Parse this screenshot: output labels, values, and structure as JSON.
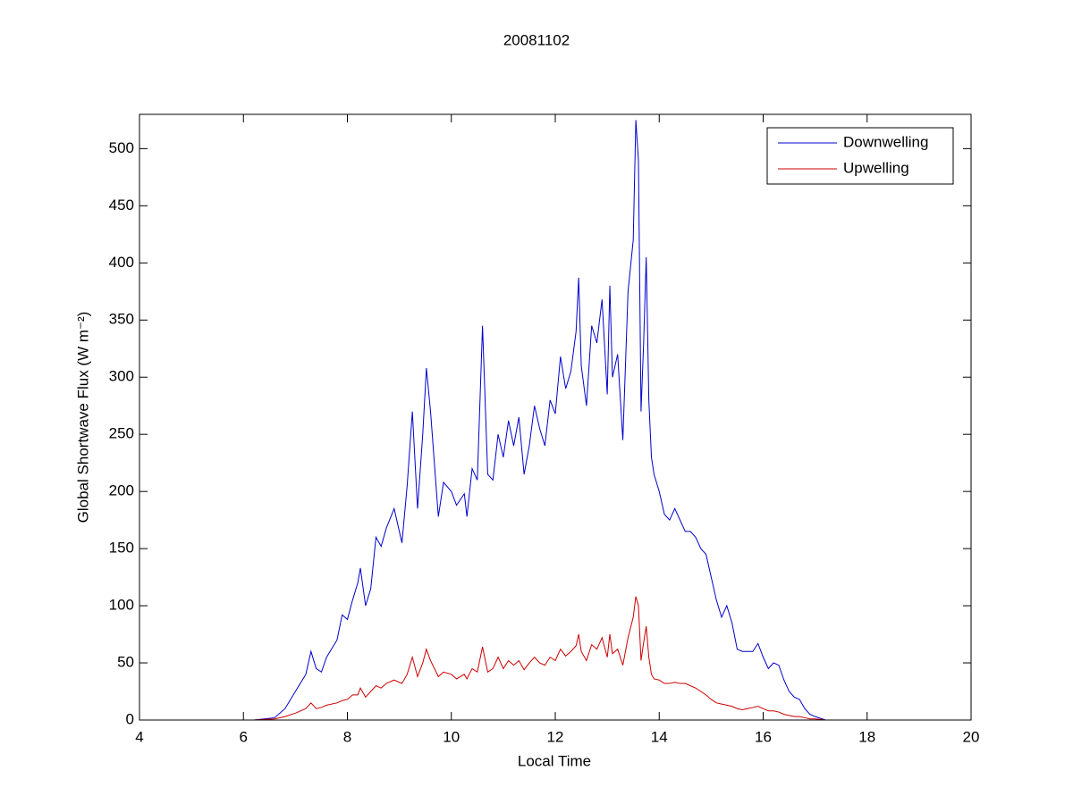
{
  "chart_data": {
    "type": "line",
    "title": "20081102",
    "xlabel": "Local Time",
    "ylabel": "Global Shortwave Flux (W m⁻²)",
    "x": [
      4.7,
      5.0,
      6.2,
      6.6,
      6.8,
      7.0,
      7.2,
      7.3,
      7.4,
      7.5,
      7.6,
      7.8,
      7.9,
      8.0,
      8.1,
      8.2,
      8.25,
      8.35,
      8.45,
      8.55,
      8.65,
      8.75,
      8.9,
      9.05,
      9.15,
      9.25,
      9.35,
      9.45,
      9.52,
      9.6,
      9.75,
      9.85,
      10.0,
      10.1,
      10.25,
      10.3,
      10.4,
      10.5,
      10.6,
      10.7,
      10.8,
      10.9,
      11.0,
      11.1,
      11.2,
      11.3,
      11.4,
      11.5,
      11.6,
      11.7,
      11.8,
      11.9,
      12.0,
      12.1,
      12.2,
      12.3,
      12.4,
      12.45,
      12.5,
      12.6,
      12.7,
      12.8,
      12.9,
      13.0,
      13.05,
      13.1,
      13.2,
      13.3,
      13.4,
      13.5,
      13.55,
      13.6,
      13.65,
      13.7,
      13.75,
      13.8,
      13.85,
      13.9,
      14.0,
      14.1,
      14.2,
      14.3,
      14.4,
      14.5,
      14.6,
      14.7,
      14.8,
      14.9,
      15.0,
      15.1,
      15.2,
      15.3,
      15.4,
      15.5,
      15.6,
      15.7,
      15.8,
      15.9,
      16.0,
      16.1,
      16.2,
      16.3,
      16.4,
      16.5,
      16.6,
      16.7,
      16.8,
      16.9,
      17.0,
      17.2,
      17.3
    ],
    "series": [
      {
        "name": "Downwelling",
        "color": "#0000cc",
        "values": [
          0,
          0,
          0,
          2,
          10,
          25,
          40,
          60,
          45,
          42,
          55,
          70,
          92,
          88,
          105,
          120,
          133,
          100,
          115,
          160,
          152,
          168,
          185,
          155,
          205,
          270,
          185,
          250,
          308,
          270,
          178,
          208,
          200,
          188,
          198,
          178,
          220,
          210,
          345,
          215,
          210,
          250,
          230,
          262,
          240,
          265,
          215,
          240,
          275,
          255,
          240,
          280,
          268,
          318,
          290,
          305,
          340,
          387,
          310,
          275,
          345,
          330,
          368,
          285,
          380,
          300,
          320,
          245,
          375,
          420,
          525,
          490,
          270,
          330,
          405,
          280,
          230,
          215,
          200,
          180,
          175,
          185,
          175,
          165,
          165,
          160,
          150,
          145,
          125,
          105,
          90,
          100,
          85,
          62,
          60,
          60,
          60,
          67,
          55,
          45,
          50,
          48,
          35,
          25,
          20,
          18,
          10,
          5,
          3,
          0,
          0
        ]
      },
      {
        "name": "Upwelling",
        "color": "#cc0000",
        "values": [
          0,
          0,
          0,
          1,
          3,
          6,
          10,
          15,
          10,
          11,
          13,
          15,
          17,
          18,
          22,
          22,
          28,
          20,
          25,
          30,
          28,
          32,
          35,
          32,
          40,
          55,
          38,
          50,
          62,
          52,
          38,
          42,
          40,
          36,
          40,
          36,
          45,
          42,
          64,
          42,
          45,
          55,
          45,
          52,
          48,
          52,
          44,
          50,
          55,
          50,
          48,
          55,
          52,
          62,
          56,
          60,
          65,
          75,
          60,
          52,
          66,
          62,
          72,
          55,
          75,
          58,
          62,
          48,
          72,
          90,
          108,
          100,
          52,
          68,
          82,
          55,
          40,
          36,
          35,
          32,
          32,
          33,
          32,
          32,
          30,
          28,
          25,
          22,
          18,
          15,
          14,
          13,
          12,
          10,
          9,
          10,
          11,
          12,
          10,
          8,
          8,
          7,
          5,
          4,
          3,
          3,
          2,
          1,
          1,
          0,
          0
        ]
      }
    ],
    "xlim": [
      4,
      20
    ],
    "xticks": [
      4,
      6,
      8,
      10,
      12,
      14,
      16,
      18,
      20
    ],
    "ylim": [
      0,
      530
    ],
    "yticks": [
      0,
      50,
      100,
      150,
      200,
      250,
      300,
      350,
      400,
      450,
      500
    ],
    "legend": "upper-right"
  }
}
